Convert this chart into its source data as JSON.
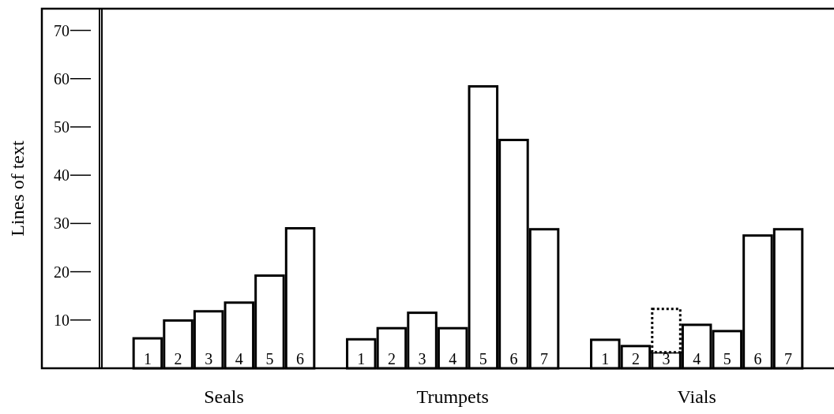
{
  "chart_data": {
    "type": "bar",
    "ylabel": "Lines of text",
    "stacked": true,
    "categories": [
      null,
      "1",
      "2",
      "3",
      "4",
      "5",
      "6",
      null,
      "1",
      "2",
      "3",
      "4",
      "5",
      "6",
      "7",
      null,
      "1",
      "2",
      "3",
      "4",
      "5",
      "6",
      "7",
      null
    ],
    "series": [
      {
        "color": "#ffffff",
        "values": [
          null,
          6.2,
          9.9,
          11.8,
          13.6,
          19.2,
          29.0,
          null,
          6.0,
          8.3,
          11.5,
          8.3,
          58.4,
          47.3,
          28.8,
          null,
          5.9,
          4.6,
          3.3,
          9.0,
          7.7,
          27.5,
          28.8,
          null
        ]
      },
      {
        "color": "#ffffff",
        "line_style": "dotted",
        "values": [
          null,
          null,
          null,
          null,
          null,
          null,
          null,
          null,
          null,
          null,
          null,
          null,
          null,
          null,
          null,
          null,
          null,
          null,
          9.0,
          null,
          null,
          null,
          null,
          null
        ]
      }
    ],
    "ylim": [
      0,
      74.5
    ],
    "yticks": [
      10,
      20,
      30,
      40,
      50,
      60,
      70
    ],
    "annotations": [
      "Seals",
      "Trumpets",
      "Vials"
    ]
  }
}
